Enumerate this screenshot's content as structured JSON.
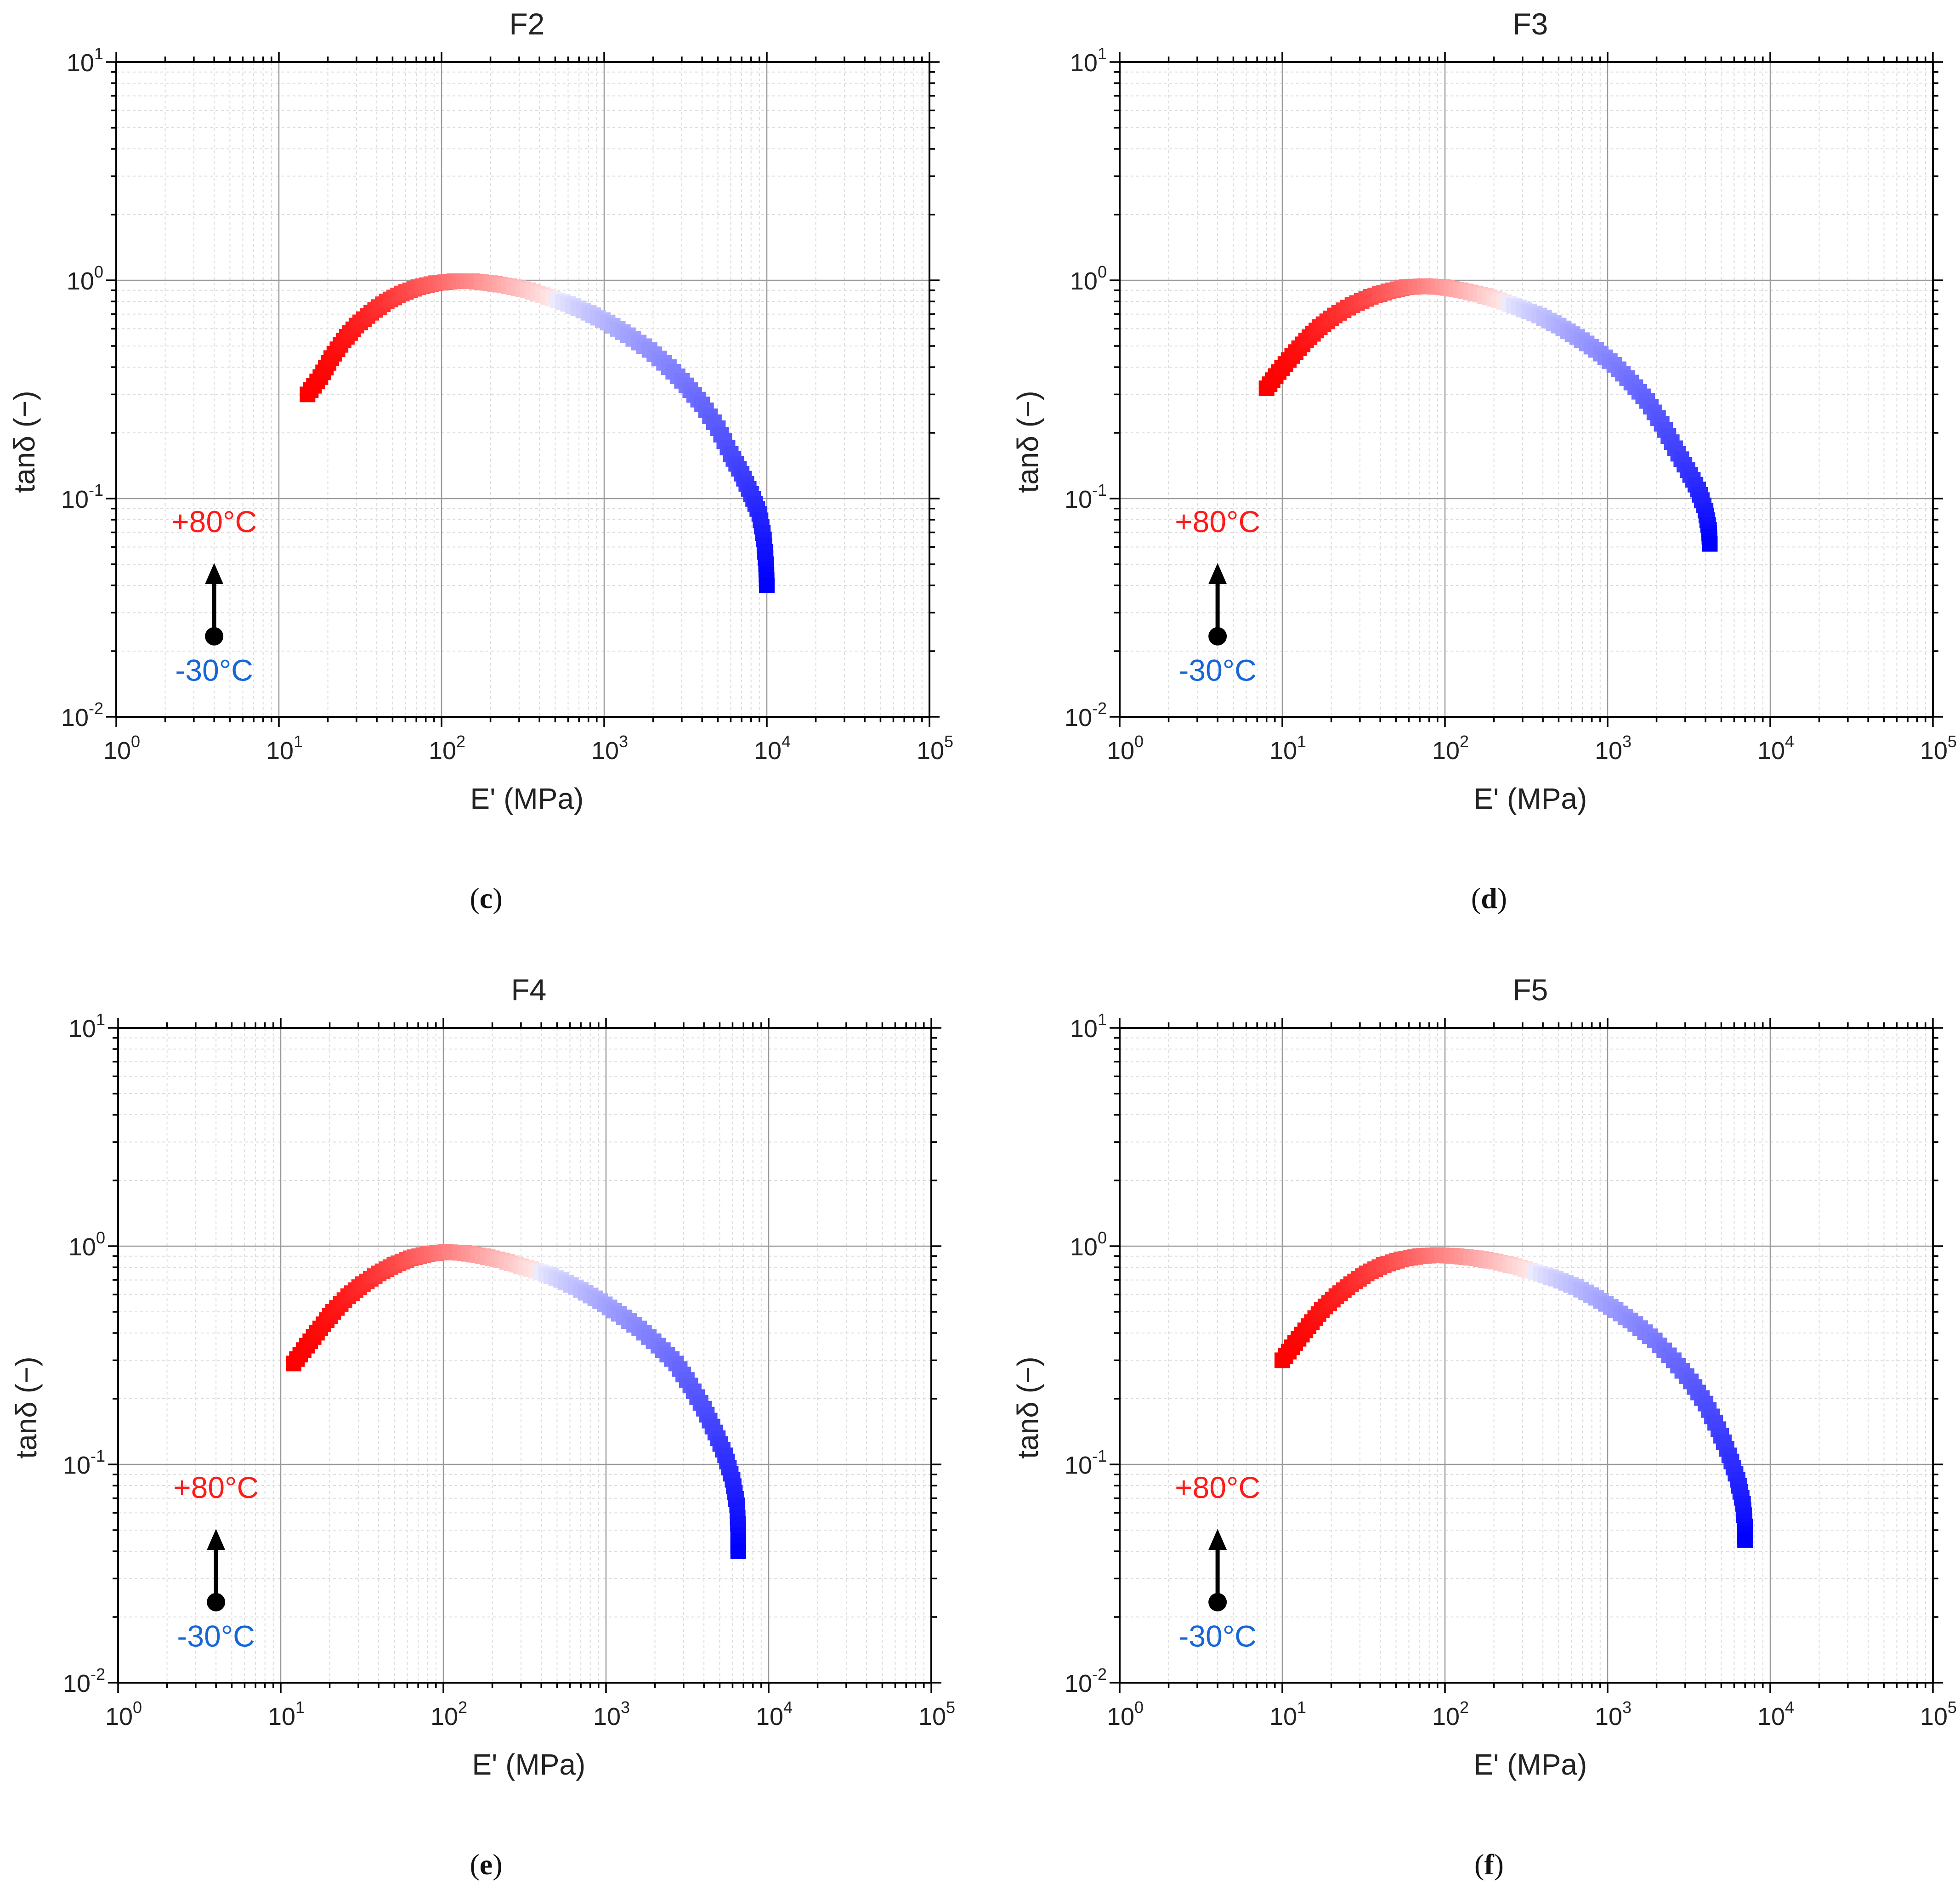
{
  "figure": {
    "panel_captions": [
      {
        "open": "(",
        "letter": "c",
        "close": ")"
      },
      {
        "open": "(",
        "letter": "d",
        "close": ")"
      },
      {
        "open": "(",
        "letter": "e",
        "close": ")"
      },
      {
        "open": "(",
        "letter": "f",
        "close": ")"
      }
    ]
  },
  "colors": {
    "hot": "#ff0000",
    "cold": "#0000ff",
    "hot_label": "#ff1a1a",
    "cold_label": "#1766d6",
    "arrow": "#000000"
  },
  "chart_data": [
    {
      "type": "scatter",
      "title": "F2",
      "xlabel": "E' (MPa)",
      "ylabel": "tanδ (−)",
      "xscale": "log",
      "yscale": "log",
      "xlim": [
        1,
        100000
      ],
      "ylim": [
        0.01,
        10
      ],
      "xticks": [
        "10^0",
        "10^1",
        "10^2",
        "10^3",
        "10^4",
        "10^5"
      ],
      "yticks": [
        "10^-2",
        "10^-1",
        "10^0",
        "10^1"
      ],
      "grid": true,
      "legend": "none",
      "annotations": {
        "hot_label": "+80°C",
        "cold_label": "-30°C",
        "arrow": "from -30°C up to +80°C",
        "arrow_x": 4
      },
      "color_scale": "temperature from -30°C (blue) to +80°C (red)",
      "series": [
        {
          "name": "F2",
          "points": [
            {
              "E": 15,
              "tan": 0.3
            },
            {
              "E": 18,
              "tan": 0.36
            },
            {
              "E": 21,
              "tan": 0.44
            },
            {
              "E": 25,
              "tan": 0.53
            },
            {
              "E": 30,
              "tan": 0.62
            },
            {
              "E": 37,
              "tan": 0.71
            },
            {
              "E": 46,
              "tan": 0.8
            },
            {
              "E": 57,
              "tan": 0.87
            },
            {
              "E": 72,
              "tan": 0.93
            },
            {
              "E": 92,
              "tan": 0.97
            },
            {
              "E": 120,
              "tan": 0.99
            },
            {
              "E": 155,
              "tan": 0.99
            },
            {
              "E": 200,
              "tan": 0.97
            },
            {
              "E": 260,
              "tan": 0.94
            },
            {
              "E": 340,
              "tan": 0.9
            },
            {
              "E": 450,
              "tan": 0.84
            },
            {
              "E": 600,
              "tan": 0.78
            },
            {
              "E": 800,
              "tan": 0.71
            },
            {
              "E": 1050,
              "tan": 0.64
            },
            {
              "E": 1400,
              "tan": 0.56
            },
            {
              "E": 1900,
              "tan": 0.48
            },
            {
              "E": 2500,
              "tan": 0.4
            },
            {
              "E": 3200,
              "tan": 0.33
            },
            {
              "E": 4000,
              "tan": 0.27
            },
            {
              "E": 5000,
              "tan": 0.21
            },
            {
              "E": 6000,
              "tan": 0.16
            },
            {
              "E": 7000,
              "tan": 0.13
            },
            {
              "E": 8000,
              "tan": 0.105
            },
            {
              "E": 9000,
              "tan": 0.085
            },
            {
              "E": 9600,
              "tan": 0.065
            },
            {
              "E": 9900,
              "tan": 0.05
            },
            {
              "E": 10000,
              "tan": 0.04
            }
          ]
        }
      ]
    },
    {
      "type": "scatter",
      "title": "F3",
      "xlabel": "E' (MPa)",
      "ylabel": "tanδ (−)",
      "xscale": "log",
      "yscale": "log",
      "xlim": [
        1,
        100000
      ],
      "ylim": [
        0.01,
        10
      ],
      "xticks": [
        "10^0",
        "10^1",
        "10^2",
        "10^3",
        "10^4",
        "10^5"
      ],
      "yticks": [
        "10^-2",
        "10^-1",
        "10^0",
        "10^1"
      ],
      "grid": true,
      "legend": "none",
      "annotations": {
        "hot_label": "+80°C",
        "cold_label": "-30°C",
        "arrow": "from -30°C up to +80°C",
        "arrow_x": 4
      },
      "color_scale": "temperature from -30°C (blue) to +80°C (red)",
      "series": [
        {
          "name": "F3",
          "points": [
            {
              "E": 8,
              "tan": 0.32
            },
            {
              "E": 9.5,
              "tan": 0.38
            },
            {
              "E": 11.5,
              "tan": 0.45
            },
            {
              "E": 14,
              "tan": 0.53
            },
            {
              "E": 17,
              "tan": 0.61
            },
            {
              "E": 21,
              "tan": 0.69
            },
            {
              "E": 27,
              "tan": 0.77
            },
            {
              "E": 35,
              "tan": 0.84
            },
            {
              "E": 45,
              "tan": 0.89
            },
            {
              "E": 58,
              "tan": 0.93
            },
            {
              "E": 75,
              "tan": 0.94
            },
            {
              "E": 97,
              "tan": 0.93
            },
            {
              "E": 125,
              "tan": 0.9
            },
            {
              "E": 165,
              "tan": 0.86
            },
            {
              "E": 215,
              "tan": 0.81
            },
            {
              "E": 285,
              "tan": 0.75
            },
            {
              "E": 380,
              "tan": 0.69
            },
            {
              "E": 500,
              "tan": 0.62
            },
            {
              "E": 650,
              "tan": 0.55
            },
            {
              "E": 850,
              "tan": 0.48
            },
            {
              "E": 1100,
              "tan": 0.41
            },
            {
              "E": 1400,
              "tan": 0.34
            },
            {
              "E": 1750,
              "tan": 0.28
            },
            {
              "E": 2150,
              "tan": 0.22
            },
            {
              "E": 2600,
              "tan": 0.17
            },
            {
              "E": 3100,
              "tan": 0.135
            },
            {
              "E": 3600,
              "tan": 0.11
            },
            {
              "E": 4000,
              "tan": 0.088
            },
            {
              "E": 4200,
              "tan": 0.072
            },
            {
              "E": 4250,
              "tan": 0.062
            }
          ]
        }
      ]
    },
    {
      "type": "scatter",
      "title": "F4",
      "xlabel": "E' (MPa)",
      "ylabel": "tanδ (−)",
      "xscale": "log",
      "yscale": "log",
      "xlim": [
        1,
        100000
      ],
      "ylim": [
        0.01,
        10
      ],
      "xticks": [
        "10^0",
        "10^1",
        "10^2",
        "10^3",
        "10^4",
        "10^5"
      ],
      "yticks": [
        "10^-2",
        "10^-1",
        "10^0",
        "10^1"
      ],
      "grid": true,
      "legend": "none",
      "annotations": {
        "hot_label": "+80°C",
        "cold_label": "-30°C",
        "arrow": "from -30°C up to +80°C",
        "arrow_x": 4
      },
      "color_scale": "temperature from -30°C (blue) to +80°C (red)",
      "series": [
        {
          "name": "F4",
          "points": [
            {
              "E": 12,
              "tan": 0.29
            },
            {
              "E": 14.5,
              "tan": 0.35
            },
            {
              "E": 17.5,
              "tan": 0.42
            },
            {
              "E": 21,
              "tan": 0.5
            },
            {
              "E": 26,
              "tan": 0.59
            },
            {
              "E": 32,
              "tan": 0.67
            },
            {
              "E": 40,
              "tan": 0.75
            },
            {
              "E": 50,
              "tan": 0.82
            },
            {
              "E": 63,
              "tan": 0.88
            },
            {
              "E": 80,
              "tan": 0.92
            },
            {
              "E": 103,
              "tan": 0.94
            },
            {
              "E": 135,
              "tan": 0.93
            },
            {
              "E": 175,
              "tan": 0.9
            },
            {
              "E": 230,
              "tan": 0.86
            },
            {
              "E": 300,
              "tan": 0.81
            },
            {
              "E": 400,
              "tan": 0.76
            },
            {
              "E": 530,
              "tan": 0.7
            },
            {
              "E": 700,
              "tan": 0.63
            },
            {
              "E": 920,
              "tan": 0.56
            },
            {
              "E": 1200,
              "tan": 0.49
            },
            {
              "E": 1600,
              "tan": 0.42
            },
            {
              "E": 2100,
              "tan": 0.35
            },
            {
              "E": 2700,
              "tan": 0.29
            },
            {
              "E": 3300,
              "tan": 0.23
            },
            {
              "E": 4000,
              "tan": 0.18
            },
            {
              "E": 4700,
              "tan": 0.14
            },
            {
              "E": 5400,
              "tan": 0.11
            },
            {
              "E": 6000,
              "tan": 0.085
            },
            {
              "E": 6400,
              "tan": 0.065
            },
            {
              "E": 6500,
              "tan": 0.05
            },
            {
              "E": 6500,
              "tan": 0.04
            }
          ]
        }
      ]
    },
    {
      "type": "scatter",
      "title": "F5",
      "xlabel": "E' (MPa)",
      "ylabel": "tanδ (−)",
      "xscale": "log",
      "yscale": "log",
      "xlim": [
        1,
        100000
      ],
      "ylim": [
        0.01,
        10
      ],
      "xticks": [
        "10^0",
        "10^1",
        "10^2",
        "10^3",
        "10^4",
        "10^5"
      ],
      "yticks": [
        "10^-2",
        "10^-1",
        "10^0",
        "10^1"
      ],
      "grid": true,
      "legend": "none",
      "annotations": {
        "hot_label": "+80°C",
        "cold_label": "-30°C",
        "arrow": "from -30°C up to +80°C",
        "arrow_x": 4
      },
      "color_scale": "temperature from -30°C (blue) to +80°C (red)",
      "series": [
        {
          "name": "F5",
          "points": [
            {
              "E": 10,
              "tan": 0.3
            },
            {
              "E": 12,
              "tan": 0.36
            },
            {
              "E": 14.5,
              "tan": 0.43
            },
            {
              "E": 17.5,
              "tan": 0.51
            },
            {
              "E": 21.5,
              "tan": 0.59
            },
            {
              "E": 26.5,
              "tan": 0.67
            },
            {
              "E": 33,
              "tan": 0.75
            },
            {
              "E": 42,
              "tan": 0.82
            },
            {
              "E": 54,
              "tan": 0.87
            },
            {
              "E": 70,
              "tan": 0.9
            },
            {
              "E": 90,
              "tan": 0.91
            },
            {
              "E": 118,
              "tan": 0.9
            },
            {
              "E": 155,
              "tan": 0.88
            },
            {
              "E": 205,
              "tan": 0.85
            },
            {
              "E": 270,
              "tan": 0.81
            },
            {
              "E": 360,
              "tan": 0.76
            },
            {
              "E": 480,
              "tan": 0.71
            },
            {
              "E": 640,
              "tan": 0.65
            },
            {
              "E": 850,
              "tan": 0.58
            },
            {
              "E": 1120,
              "tan": 0.51
            },
            {
              "E": 1480,
              "tan": 0.44
            },
            {
              "E": 1950,
              "tan": 0.37
            },
            {
              "E": 2550,
              "tan": 0.3
            },
            {
              "E": 3250,
              "tan": 0.24
            },
            {
              "E": 4000,
              "tan": 0.19
            },
            {
              "E": 4800,
              "tan": 0.145
            },
            {
              "E": 5600,
              "tan": 0.11
            },
            {
              "E": 6300,
              "tan": 0.085
            },
            {
              "E": 6800,
              "tan": 0.066
            },
            {
              "E": 7000,
              "tan": 0.052
            },
            {
              "E": 7000,
              "tan": 0.045
            }
          ]
        }
      ]
    }
  ]
}
